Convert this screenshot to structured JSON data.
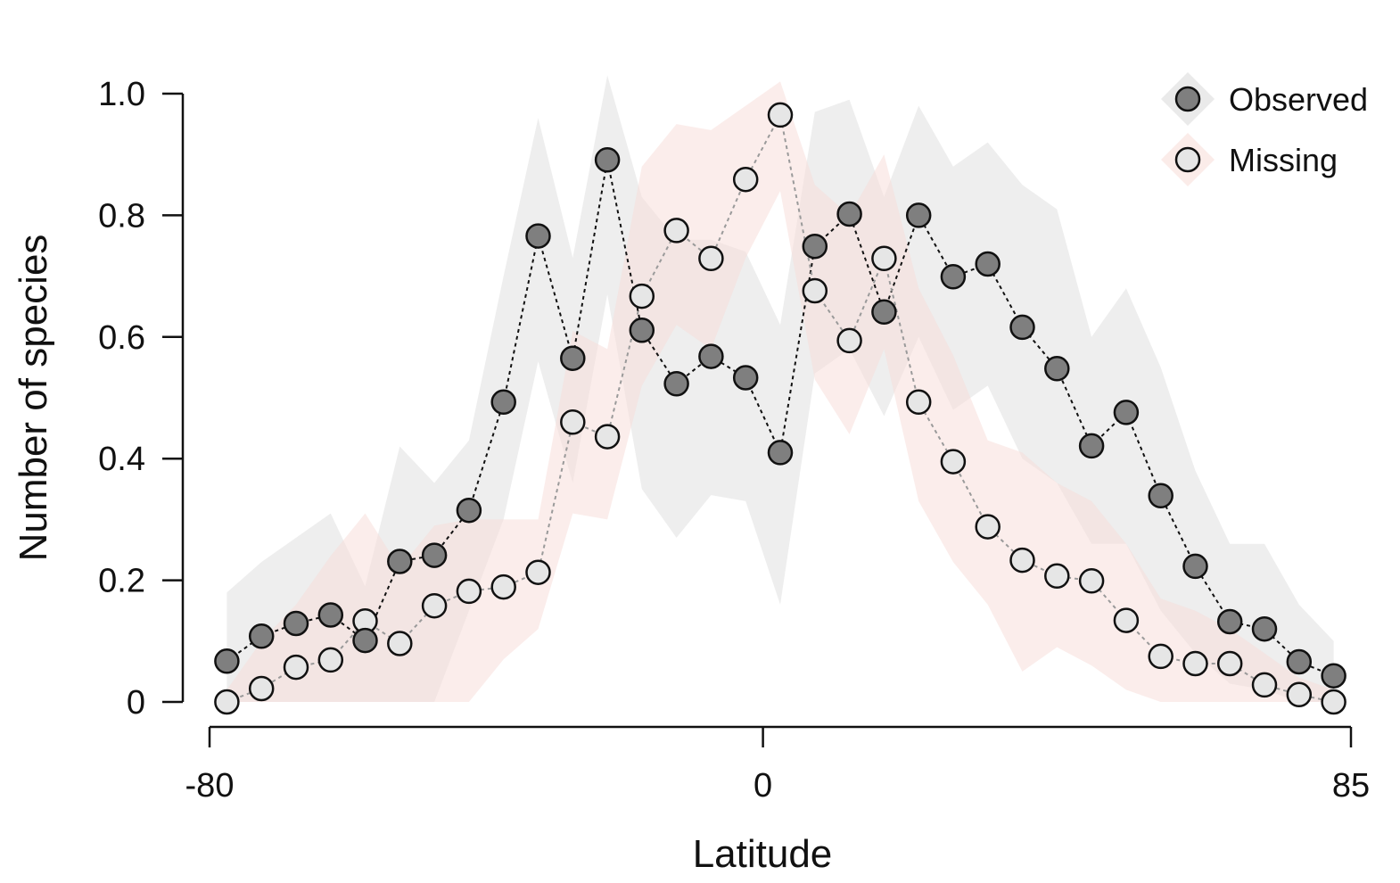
{
  "chart_data": {
    "type": "scatter",
    "xlabel": "Latitude",
    "ylabel": "Number of species",
    "xlim": [
      -80,
      85
    ],
    "ylim": [
      0,
      1.0
    ],
    "xticks": [
      -80,
      0,
      85
    ],
    "xtick_labels": [
      "-80",
      "0",
      "85"
    ],
    "yticks": [
      0,
      0.2,
      0.4,
      0.6,
      0.8,
      1.0
    ],
    "ytick_labels": [
      "0",
      "0.2",
      "0.4",
      "0.6",
      "0.8",
      "1.0"
    ],
    "grid": false,
    "legend_position": "top-right",
    "x": [
      -77.5,
      -72.5,
      -67.5,
      -62.5,
      -57.5,
      -52.5,
      -47.5,
      -42.5,
      -37.5,
      -32.5,
      -27.5,
      -22.5,
      -17.5,
      -12.5,
      -7.5,
      -2.5,
      2.5,
      7.5,
      12.5,
      17.5,
      22.5,
      27.5,
      32.5,
      37.5,
      42.5,
      47.5,
      52.5,
      57.5,
      62.5,
      67.5,
      72.5,
      77.5,
      82.5
    ],
    "series": [
      {
        "name": "Observed",
        "color": "#7f7f7f",
        "band_color": "#d9d9d9",
        "values": [
          0.067,
          0.108,
          0.129,
          0.143,
          0.101,
          0.231,
          0.241,
          0.315,
          0.493,
          0.766,
          0.565,
          0.891,
          0.611,
          0.523,
          0.568,
          0.533,
          0.41,
          0.749,
          0.802,
          0.641,
          0.8,
          0.699,
          0.72,
          0.616,
          0.548,
          0.421,
          0.476,
          0.339,
          0.223,
          0.132,
          0.12,
          0.066,
          0.043
        ],
        "lower": [
          0.0,
          0.0,
          0.0,
          0.0,
          0.0,
          0.0,
          0.0,
          0.15,
          0.3,
          0.56,
          0.36,
          0.67,
          0.35,
          0.27,
          0.34,
          0.33,
          0.16,
          0.54,
          0.58,
          0.47,
          0.6,
          0.48,
          0.52,
          0.4,
          0.36,
          0.26,
          0.26,
          0.15,
          0.08,
          0.03,
          0.02,
          0.0,
          0.0
        ],
        "upper": [
          0.18,
          0.23,
          0.27,
          0.31,
          0.19,
          0.42,
          0.36,
          0.43,
          0.7,
          0.96,
          0.73,
          1.03,
          0.83,
          0.76,
          0.76,
          0.74,
          0.62,
          0.97,
          0.99,
          0.83,
          0.98,
          0.88,
          0.92,
          0.85,
          0.81,
          0.6,
          0.68,
          0.55,
          0.38,
          0.26,
          0.26,
          0.16,
          0.1
        ]
      },
      {
        "name": "Missing",
        "color": "#e6e6e6",
        "band_color": "#f7dcd7",
        "values": [
          0.0,
          0.022,
          0.057,
          0.069,
          0.133,
          0.096,
          0.158,
          0.182,
          0.189,
          0.213,
          0.46,
          0.436,
          0.667,
          0.775,
          0.729,
          0.859,
          0.965,
          0.676,
          0.594,
          0.729,
          0.493,
          0.395,
          0.288,
          0.233,
          0.207,
          0.199,
          0.134,
          0.075,
          0.063,
          0.063,
          0.028,
          0.012,
          0.0
        ],
        "lower": [
          0.0,
          0.0,
          0.0,
          0.0,
          0.0,
          0.0,
          0.0,
          0.0,
          0.07,
          0.12,
          0.31,
          0.3,
          0.52,
          0.62,
          0.58,
          0.73,
          0.84,
          0.53,
          0.44,
          0.58,
          0.33,
          0.23,
          0.16,
          0.05,
          0.09,
          0.06,
          0.02,
          0.0,
          0.0,
          0.0,
          0.0,
          0.0,
          0.0
        ],
        "upper": [
          0.02,
          0.1,
          0.16,
          0.24,
          0.31,
          0.22,
          0.29,
          0.3,
          0.3,
          0.3,
          0.61,
          0.58,
          0.88,
          0.95,
          0.94,
          0.98,
          1.02,
          0.85,
          0.8,
          0.9,
          0.68,
          0.57,
          0.43,
          0.41,
          0.36,
          0.33,
          0.26,
          0.17,
          0.15,
          0.12,
          0.08,
          0.04,
          0.02
        ]
      }
    ]
  }
}
